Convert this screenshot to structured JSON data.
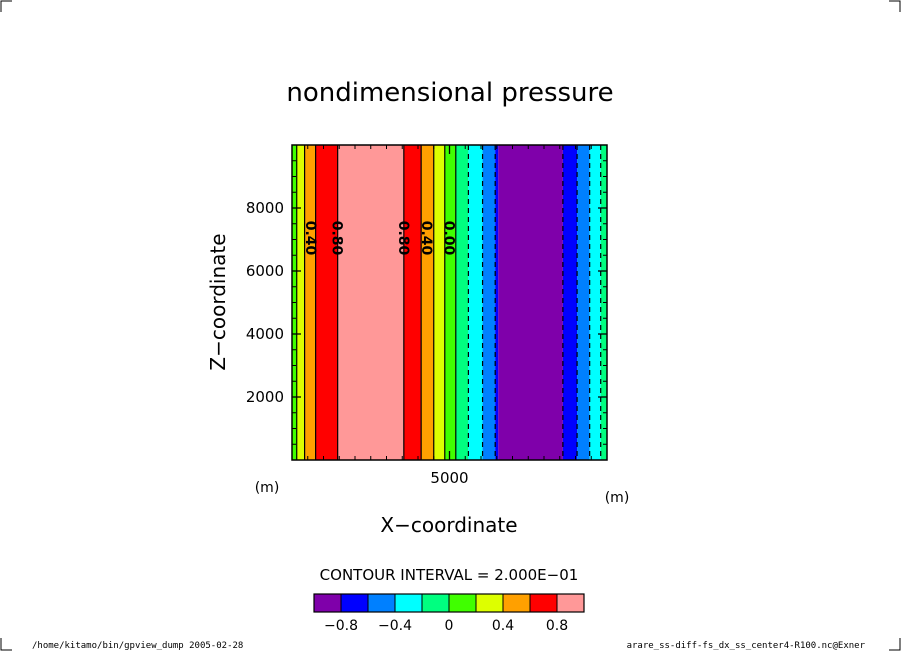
{
  "chart_data": {
    "type": "heatmap",
    "title": "nondimensional pressure",
    "xlabel": "X−coordinate",
    "ylabel": "Z−coordinate",
    "x_unit": "(m)",
    "y_unit": "(m)",
    "xlim": [
      0,
      10000
    ],
    "ylim": [
      0,
      10000
    ],
    "x_ticks": [
      {
        "value": 5000,
        "label": "5000"
      }
    ],
    "y_ticks": [
      {
        "value": 2000,
        "label": "2000"
      },
      {
        "value": 4000,
        "label": "4000"
      },
      {
        "value": 6000,
        "label": "6000"
      },
      {
        "value": 8000,
        "label": "8000"
      }
    ],
    "contour_interval_text": "CONTOUR INTERVAL = 2.000E−01",
    "colorbar": {
      "levels": [
        -1.0,
        -0.8,
        -0.6,
        -0.4,
        -0.2,
        0,
        0.2,
        0.4,
        0.6,
        0.8,
        1.0
      ],
      "colors": [
        "#7f00aa",
        "#0000ff",
        "#0080ff",
        "#00ffff",
        "#00ff80",
        "#40ff00",
        "#ddff00",
        "#ffa000",
        "#ff0000",
        "#ff9898"
      ],
      "tick_labels": [
        {
          "value": -0.8,
          "label": "−0.8"
        },
        {
          "value": -0.4,
          "label": "−0.4"
        },
        {
          "value": 0,
          "label": "0"
        },
        {
          "value": 0.4,
          "label": "0.4"
        },
        {
          "value": 0.8,
          "label": "0.8"
        }
      ]
    },
    "bands": [
      {
        "x0": 0,
        "x1": 150,
        "color": "#40ff00"
      },
      {
        "x0": 150,
        "x1": 400,
        "color": "#ddff00"
      },
      {
        "x0": 400,
        "x1": 750,
        "color": "#ffa000"
      },
      {
        "x0": 750,
        "x1": 1450,
        "color": "#ff0000"
      },
      {
        "x0": 1450,
        "x1": 3550,
        "color": "#ff9898"
      },
      {
        "x0": 3550,
        "x1": 4100,
        "color": "#ff0000"
      },
      {
        "x0": 4100,
        "x1": 4500,
        "color": "#ffa000"
      },
      {
        "x0": 4500,
        "x1": 4850,
        "color": "#ddff00"
      },
      {
        "x0": 4850,
        "x1": 5200,
        "color": "#40ff00"
      },
      {
        "x0": 5200,
        "x1": 5600,
        "color": "#00ff80"
      },
      {
        "x0": 5600,
        "x1": 6050,
        "color": "#00ffff"
      },
      {
        "x0": 6050,
        "x1": 6450,
        "color": "#0080ff"
      },
      {
        "x0": 6450,
        "x1": 6550,
        "color": "#0000ff"
      },
      {
        "x0": 6550,
        "x1": 8600,
        "color": "#7f00aa"
      },
      {
        "x0": 8600,
        "x1": 9050,
        "color": "#0000ff"
      },
      {
        "x0": 9050,
        "x1": 9450,
        "color": "#0080ff"
      },
      {
        "x0": 9450,
        "x1": 9800,
        "color": "#00ffff"
      },
      {
        "x0": 9800,
        "x1": 10000,
        "color": "#00ff80"
      }
    ],
    "contours_solid_x": [
      150,
      400,
      750,
      1450,
      3550,
      4100,
      4500,
      4850,
      5200
    ],
    "contours_dashed_x": [
      5600,
      6050,
      6450,
      8600,
      9050,
      9450,
      9800
    ],
    "contour_labels": [
      {
        "x": 600,
        "label": "0.40"
      },
      {
        "x": 1450,
        "label": "0.80"
      },
      {
        "x": 3550,
        "label": "0.80"
      },
      {
        "x": 4280,
        "label": "0.40"
      },
      {
        "x": 5000,
        "label": "0.00"
      }
    ]
  },
  "footer": {
    "left": "/home/kitamo/bin/gpview_dump  2005-02-28",
    "right": "arare_ss-diff-fs_dx_ss_center4-R100.nc@Exner"
  }
}
